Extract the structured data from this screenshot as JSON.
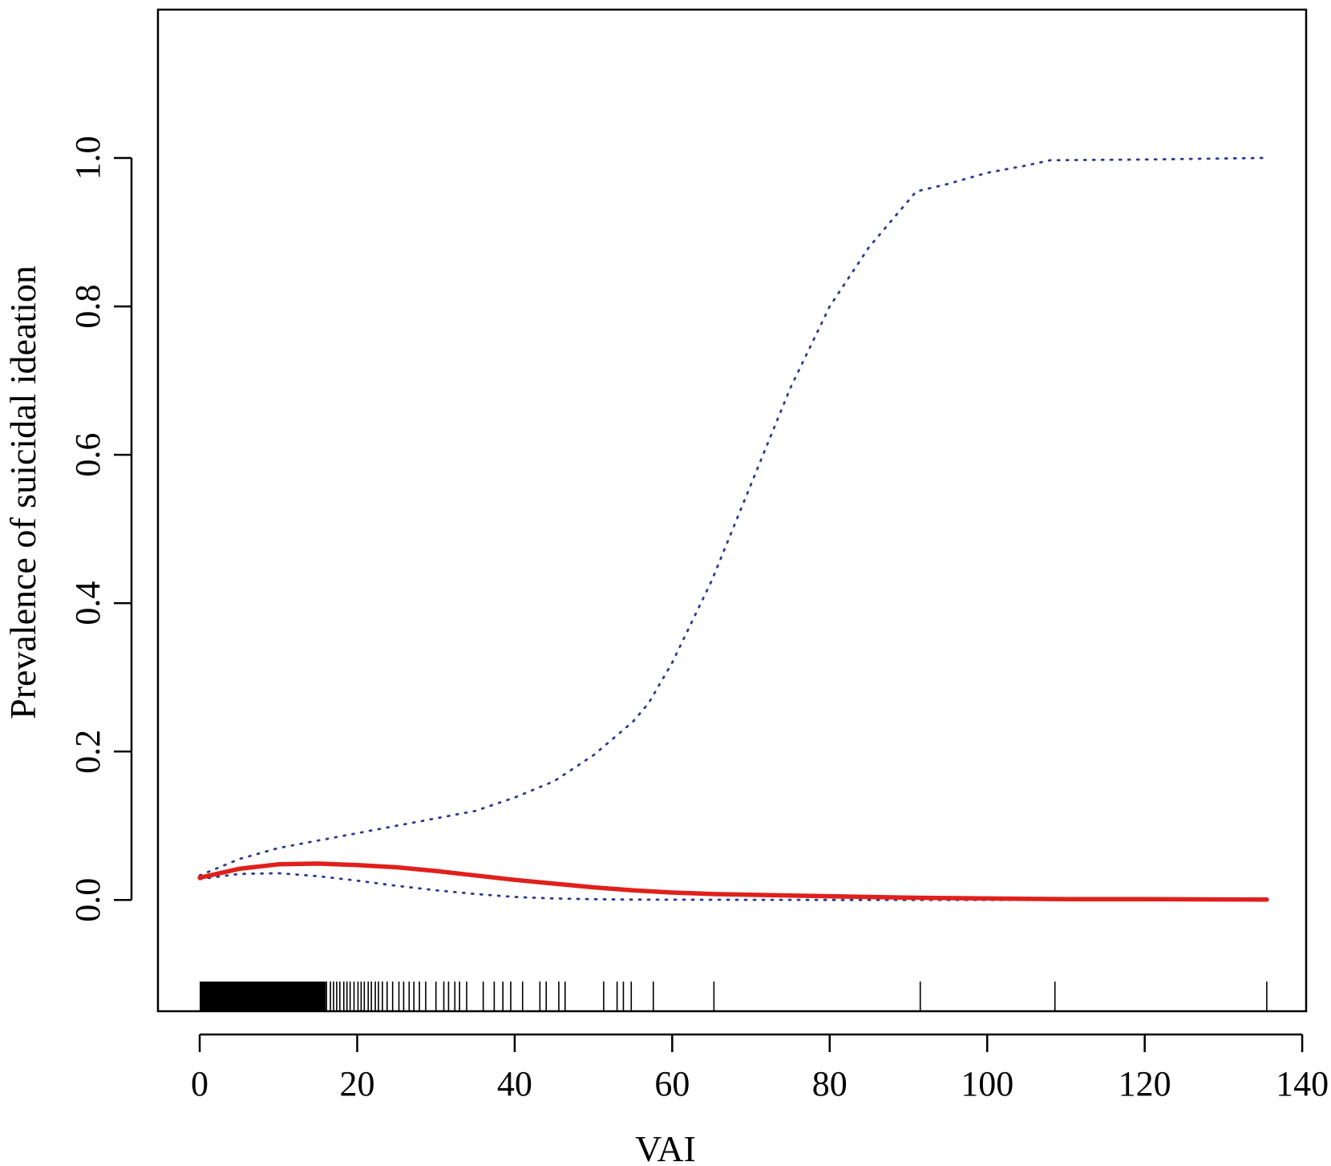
{
  "chart_data": {
    "type": "line",
    "title": "",
    "xlabel": "VAI",
    "ylabel": "Prevalence of suicidal ideation",
    "xlim": [
      -5.3,
      140.5
    ],
    "ylim": [
      -0.15,
      1.2
    ],
    "x_ticks": [
      0,
      20,
      40,
      60,
      80,
      100,
      120,
      140
    ],
    "x_tick_labels": [
      "0",
      "20",
      "40",
      "60",
      "80",
      "100",
      "120",
      "140"
    ],
    "y_ticks": [
      0.0,
      0.2,
      0.4,
      0.6,
      0.8,
      1.0
    ],
    "y_tick_labels": [
      "0.0",
      "0.2",
      "0.4",
      "0.6",
      "0.8",
      "1.0"
    ],
    "grid": false,
    "legend": "none",
    "colors": {
      "fit": "#e0201b",
      "ci": "#2b3990",
      "rug": "#000000",
      "axis": "#000000"
    },
    "series": [
      {
        "role": "fit",
        "x": [
          0,
          5,
          10,
          15,
          20,
          25,
          30,
          35,
          40,
          45,
          50,
          55,
          60,
          65,
          70,
          75,
          80,
          90,
          100,
          110,
          120,
          135.5
        ],
        "y": [
          0.03,
          0.042,
          0.048,
          0.049,
          0.047,
          0.044,
          0.039,
          0.033,
          0.027,
          0.022,
          0.017,
          0.013,
          0.01,
          0.008,
          0.007,
          0.006,
          0.005,
          0.003,
          0.002,
          0.001,
          0.001,
          0.0005
        ]
      },
      {
        "role": "upper",
        "x": [
          0,
          5,
          10,
          15,
          20,
          25,
          30,
          35,
          40,
          45,
          50,
          55,
          57,
          60,
          65,
          70,
          75,
          80,
          85,
          91,
          95,
          100,
          105,
          108,
          120,
          135
        ],
        "y": [
          0.033,
          0.055,
          0.07,
          0.08,
          0.09,
          0.1,
          0.11,
          0.12,
          0.138,
          0.16,
          0.195,
          0.24,
          0.265,
          0.32,
          0.43,
          0.56,
          0.69,
          0.8,
          0.88,
          0.955,
          0.965,
          0.98,
          0.99,
          0.997,
          0.998,
          1.0
        ]
      },
      {
        "role": "lower",
        "x": [
          0,
          5,
          10,
          15,
          20,
          25,
          30,
          35,
          40,
          45,
          50,
          55,
          60,
          70,
          80,
          100,
          120,
          135
        ],
        "y": [
          0.028,
          0.035,
          0.036,
          0.032,
          0.026,
          0.019,
          0.013,
          0.008,
          0.004,
          0.002,
          0.001,
          0.0005,
          0.0003,
          0.0001,
          0.0,
          0.0,
          0.0,
          0.0
        ]
      }
    ],
    "rug": [
      0.2,
      0.8,
      1.3,
      1.9,
      2.5,
      3.0,
      3.6,
      4.1,
      4.7,
      5.2,
      5.8,
      6.3,
      6.9,
      7.4,
      8.0,
      8.5,
      9.1,
      9.6,
      10.2,
      10.7,
      11.3,
      11.8,
      12.4,
      12.9,
      13.5,
      14.0,
      14.6,
      15.1,
      15.7,
      16.1,
      16.6,
      17.0,
      17.4,
      17.8,
      18.3,
      18.7,
      19.1,
      19.6,
      20.1,
      20.5,
      20.9,
      21.4,
      21.8,
      22.3,
      22.7,
      23.2,
      23.8,
      24.5,
      25.3,
      25.9,
      26.6,
      27.2,
      27.9,
      28.7,
      30.0,
      31.0,
      31.6,
      32.4,
      33.0,
      33.9,
      36.0,
      37.4,
      38.5,
      39.5,
      41.0,
      43.2,
      44.0,
      45.6,
      46.4,
      51.3,
      53.0,
      53.8,
      54.8,
      57.6,
      65.3,
      91.5,
      108.6,
      135.5
    ]
  }
}
